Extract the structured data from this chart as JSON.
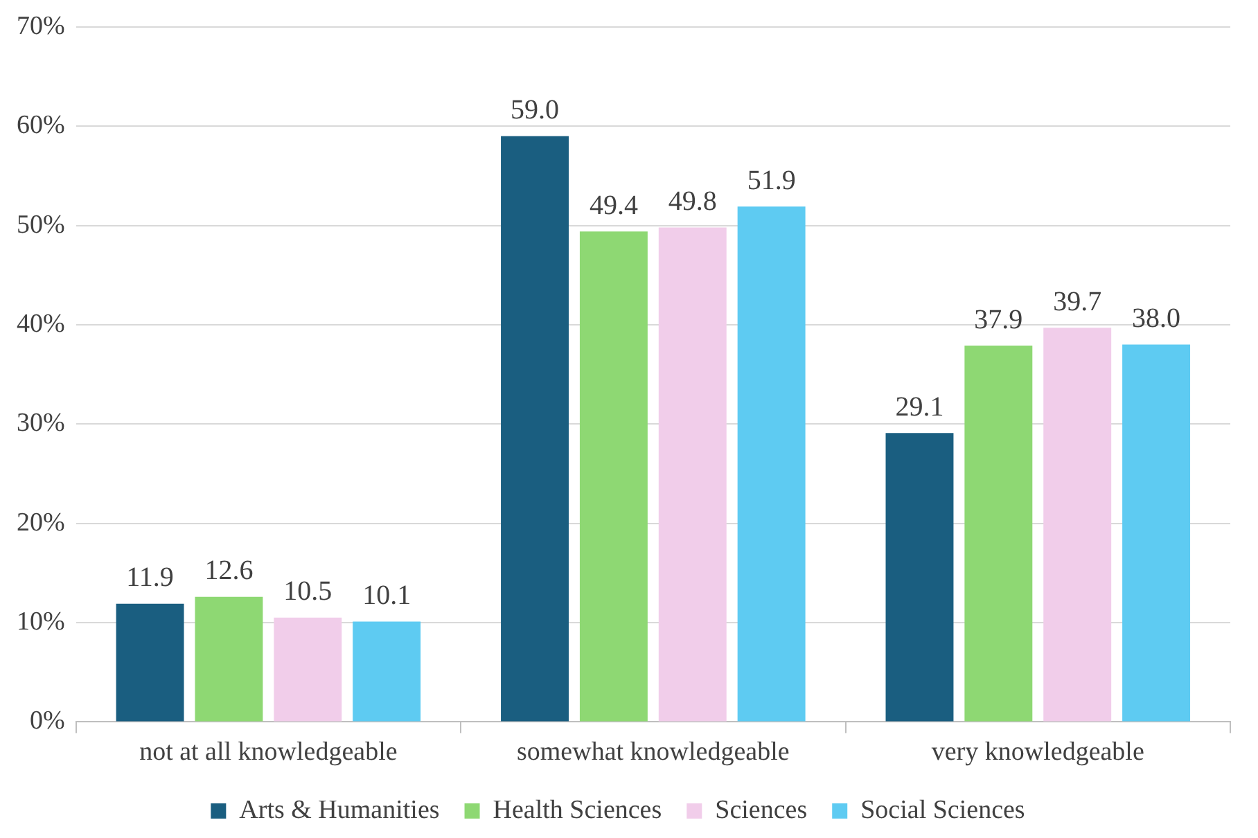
{
  "chart_data": {
    "type": "bar",
    "categories": [
      "not at all knowledgeable",
      "somewhat knowledgeable",
      "very knowledgeable"
    ],
    "series": [
      {
        "name": "Arts & Humanities",
        "color": "#1a5e80",
        "values": [
          11.9,
          59.0,
          29.1
        ],
        "value_labels": [
          "11.9",
          "59.0",
          "29.1"
        ]
      },
      {
        "name": "Health Sciences",
        "color": "#8ed873",
        "values": [
          12.6,
          49.4,
          37.9
        ],
        "value_labels": [
          "12.6",
          "49.4",
          "37.9"
        ]
      },
      {
        "name": "Sciences",
        "color": "#f1cdea",
        "values": [
          10.5,
          49.8,
          39.7
        ],
        "value_labels": [
          "10.5",
          "49.8",
          "39.7"
        ]
      },
      {
        "name": "Social Sciences",
        "color": "#5ecbf2",
        "values": [
          10.1,
          51.9,
          38.0
        ],
        "value_labels": [
          "10.1",
          "51.9",
          "38.0"
        ]
      }
    ],
    "ylim": [
      0,
      70
    ],
    "yticks": [
      {
        "value": 0,
        "label": "0%"
      },
      {
        "value": 10,
        "label": "10%"
      },
      {
        "value": 20,
        "label": "20%"
      },
      {
        "value": 30,
        "label": "30%"
      },
      {
        "value": 40,
        "label": "40%"
      },
      {
        "value": 50,
        "label": "50%"
      },
      {
        "value": 60,
        "label": "60%"
      },
      {
        "value": 70,
        "label": "70%"
      }
    ],
    "grid": "y",
    "legend": "bottom"
  }
}
